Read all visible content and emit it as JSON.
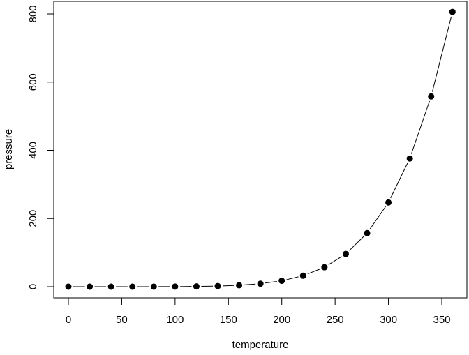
{
  "chart_data": {
    "type": "line",
    "title": "",
    "xlabel": "temperature",
    "ylabel": "pressure",
    "x": [
      0,
      20,
      40,
      60,
      80,
      100,
      120,
      140,
      160,
      180,
      200,
      220,
      240,
      260,
      280,
      300,
      320,
      340,
      360
    ],
    "series": [
      {
        "name": "pressure",
        "values": [
          0.0002,
          0.0012,
          0.006,
          0.03,
          0.09,
          0.27,
          0.75,
          1.85,
          4.2,
          8.8,
          17.3,
          32.1,
          57.0,
          96.0,
          157.0,
          247.0,
          376.0,
          558.0,
          806.0
        ]
      }
    ],
    "xticks": [
      0,
      50,
      100,
      150,
      200,
      250,
      300,
      350
    ],
    "yticks": [
      0,
      200,
      400,
      600,
      800
    ],
    "xlim": [
      -14.4,
      374.4
    ],
    "ylim": [
      -32.24,
      838.24
    ],
    "grid": false,
    "legend": null,
    "style": "points-and-lines (type='b')"
  }
}
